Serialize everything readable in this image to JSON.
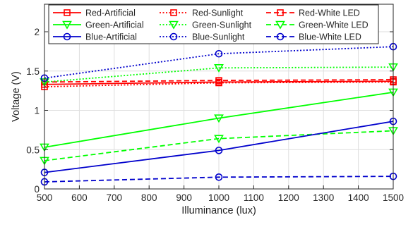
{
  "chart_data": {
    "type": "line",
    "title": "",
    "xlabel": "Illuminance (lux)",
    "ylabel": "Voltage (V)",
    "xlim": [
      500,
      1500
    ],
    "ylim": [
      0,
      2.35
    ],
    "xticks": [
      500,
      600,
      700,
      800,
      900,
      1000,
      1100,
      1200,
      1300,
      1400,
      1500
    ],
    "yticks": [
      0,
      0.5,
      1,
      1.5,
      2
    ],
    "ytick_labels": [
      "0",
      "0.5",
      "1",
      "1.5",
      "2"
    ],
    "grid": true,
    "legend_position": "top",
    "x": [
      500,
      1000,
      1500
    ],
    "series": [
      {
        "name": "Red-Artificial",
        "values": [
          1.33,
          1.36,
          1.37
        ],
        "color": "#ff0000",
        "style": "solid",
        "marker": "square"
      },
      {
        "name": "Red-Sunlight",
        "values": [
          1.3,
          1.35,
          1.36
        ],
        "color": "#ff0000",
        "style": "dotted",
        "marker": "square"
      },
      {
        "name": "Red-White LED",
        "values": [
          1.36,
          1.38,
          1.39
        ],
        "color": "#ff0000",
        "style": "dashed",
        "marker": "square"
      },
      {
        "name": "Green-Artificial",
        "values": [
          0.53,
          0.9,
          1.23
        ],
        "color": "#00ff00",
        "style": "solid",
        "marker": "triangle-down"
      },
      {
        "name": "Green-Sunlight",
        "values": [
          1.36,
          1.54,
          1.55
        ],
        "color": "#00ff00",
        "style": "dotted",
        "marker": "triangle-down"
      },
      {
        "name": "Green-White LED",
        "values": [
          0.36,
          0.64,
          0.74
        ],
        "color": "#00ff00",
        "style": "dashed",
        "marker": "triangle-down"
      },
      {
        "name": "Blue-Artificial",
        "values": [
          0.21,
          0.49,
          0.86
        ],
        "color": "#0000cc",
        "style": "solid",
        "marker": "circle"
      },
      {
        "name": "Blue-Sunlight",
        "values": [
          1.41,
          1.72,
          1.81
        ],
        "color": "#0000cc",
        "style": "dotted",
        "marker": "circle"
      },
      {
        "name": "Blue-White LED",
        "values": [
          0.09,
          0.15,
          0.16
        ],
        "color": "#0000cc",
        "style": "dashed",
        "marker": "circle"
      }
    ]
  }
}
